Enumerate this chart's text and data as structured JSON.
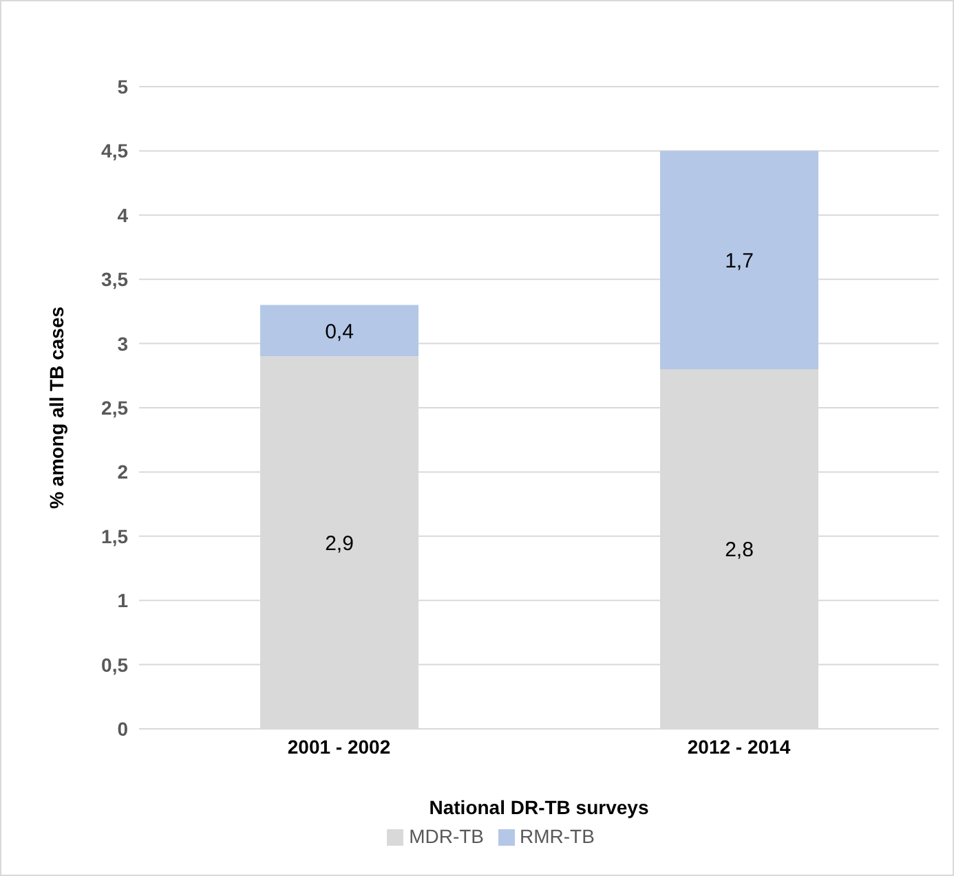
{
  "chart_data": {
    "type": "bar",
    "stacked": true,
    "xlabel": "National DR-TB surveys",
    "ylabel": "% among all TB cases",
    "categories": [
      "2001 - 2002",
      "2012 - 2014"
    ],
    "series": [
      {
        "name": "MDR-TB",
        "color": "#d9d9d9",
        "values": [
          2.9,
          2.8
        ],
        "value_labels": [
          "2,9",
          "2,8"
        ]
      },
      {
        "name": "RMR-TB",
        "color": "#b4c7e7",
        "values": [
          0.4,
          1.7
        ],
        "value_labels": [
          "0,4",
          "1,7"
        ]
      }
    ],
    "ylim": [
      0,
      5
    ],
    "yticks": [
      0,
      {
        "value": 0.5,
        "label": "0,5"
      },
      1,
      {
        "value": 1.5,
        "label": "1,5"
      },
      2,
      {
        "value": 2.5,
        "label": "2,5"
      },
      3,
      {
        "value": 3.5,
        "label": "3,5"
      },
      4,
      {
        "value": 4.5,
        "label": "4,5"
      },
      5
    ],
    "grid": "y",
    "legend": "bottom"
  }
}
